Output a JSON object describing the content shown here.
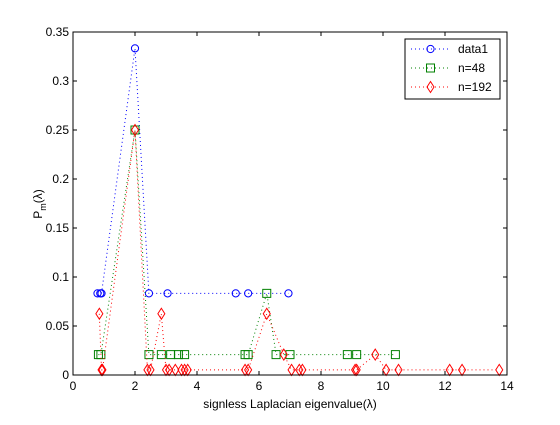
{
  "chart_data": {
    "type": "scatter",
    "title": "",
    "xlabel": "signless Laplacian eigenvalue(λ)",
    "ylabel": "P",
    "ylabel_sub": "m",
    "ylabel_suffix": "(λ)",
    "xlim": [
      0,
      14
    ],
    "ylim": [
      0,
      0.35
    ],
    "xticks": [
      "0",
      "2",
      "4",
      "6",
      "8",
      "10",
      "12",
      "14"
    ],
    "yticks": [
      "0",
      "0.05",
      "0.1",
      "0.15",
      "0.2",
      "0.25",
      "0.3",
      "0.35"
    ],
    "grid": false,
    "legend_position": "top-right",
    "series": [
      {
        "name": "data1",
        "color": "#0000ff",
        "marker": "circle",
        "line_style": "dotted",
        "x": [
          0.79,
          0.88,
          0.92,
          2.0,
          2.45,
          3.05,
          5.25,
          5.65,
          6.95
        ],
        "y": [
          0.0833,
          0.0833,
          0.0833,
          0.3333,
          0.0833,
          0.0833,
          0.0833,
          0.0833,
          0.0833
        ]
      },
      {
        "name": "n=48",
        "color": "#008000",
        "marker": "square",
        "line_style": "dotted",
        "x": [
          0.82,
          0.9,
          2.0,
          2.45,
          2.85,
          3.15,
          3.4,
          3.6,
          5.55,
          5.65,
          6.25,
          6.55,
          7.0,
          8.85,
          9.15,
          10.4
        ],
        "y": [
          0.0208,
          0.0208,
          0.25,
          0.0208,
          0.0208,
          0.0208,
          0.0208,
          0.0208,
          0.0208,
          0.0208,
          0.0833,
          0.0208,
          0.0208,
          0.0208,
          0.0208,
          0.0208
        ]
      },
      {
        "name": "n=192",
        "color": "#ff0000",
        "marker": "diamond",
        "line_style": "dotted",
        "x": [
          0.85,
          0.92,
          0.95,
          2.0,
          2.4,
          2.5,
          2.85,
          3.0,
          3.1,
          3.3,
          3.5,
          3.6,
          3.7,
          5.55,
          5.65,
          6.25,
          6.8,
          7.05,
          7.3,
          7.4,
          9.1,
          9.15,
          9.75,
          10.1,
          10.5,
          12.15,
          12.55,
          13.75
        ],
        "y": [
          0.0625,
          0.0052,
          0.0052,
          0.25,
          0.0052,
          0.0052,
          0.0625,
          0.0052,
          0.0052,
          0.0052,
          0.0052,
          0.0052,
          0.0052,
          0.0052,
          0.0052,
          0.0625,
          0.0208,
          0.0052,
          0.0052,
          0.0052,
          0.0052,
          0.0052,
          0.0208,
          0.0052,
          0.0052,
          0.0052,
          0.0052,
          0.0052
        ]
      }
    ]
  }
}
